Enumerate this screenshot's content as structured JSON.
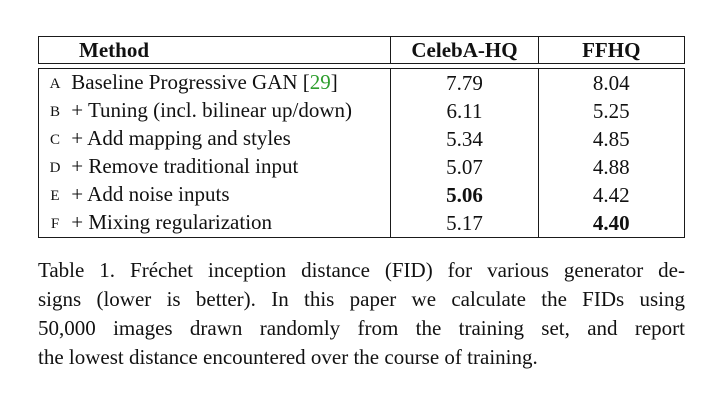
{
  "table": {
    "headers": {
      "method": "Method",
      "celeba": "CelebA-HQ",
      "ffhq": "FFHQ"
    },
    "rows": [
      {
        "letter": "A",
        "method": "Baseline Progressive GAN",
        "cite_open": "[",
        "cite_num": "29",
        "cite_close": "]",
        "celeba": "7.79",
        "ffhq": "8.04",
        "bold": ""
      },
      {
        "letter": "B",
        "method": "+ Tuning (incl. bilinear up/down)",
        "celeba": "6.11",
        "ffhq": "5.25",
        "bold": ""
      },
      {
        "letter": "C",
        "method": "+ Add mapping and styles",
        "celeba": "5.34",
        "ffhq": "4.85",
        "bold": ""
      },
      {
        "letter": "D",
        "method": "+ Remove traditional input",
        "celeba": "5.07",
        "ffhq": "4.88",
        "bold": ""
      },
      {
        "letter": "E",
        "method": "+ Add noise inputs",
        "celeba": "5.06",
        "ffhq": "4.42",
        "bold": "celeba"
      },
      {
        "letter": "F",
        "method": "+ Mixing regularization",
        "celeba": "5.17",
        "ffhq": "4.40",
        "bold": "ffhq"
      }
    ]
  },
  "caption": {
    "line1": "Table 1. Fréchet inception distance (FID) for various generator de-",
    "line2": "signs (lower is better).  In this paper we calculate the FIDs using",
    "line3": "50,000 images drawn randomly from the training set, and report",
    "line4": "the lowest distance encountered over the course of training."
  },
  "colors": {
    "citation": "#2e9e2e",
    "text": "#111111"
  }
}
